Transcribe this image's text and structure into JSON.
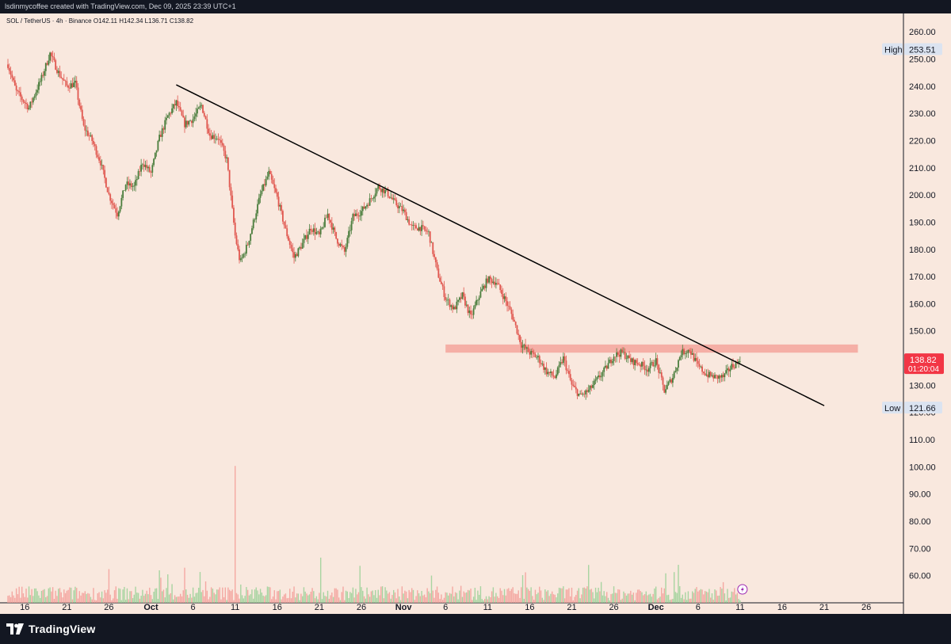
{
  "header": {
    "attribution": "lsdinmycoffee created with TradingView.com, Dec 09, 2025 23:39 UTC+1"
  },
  "legend": {
    "symbol": "SOL / TetherUS · 4h · Binance",
    "open": "O142.11",
    "high": "H142.34",
    "low": "L136.71",
    "close": "C138.82"
  },
  "price_labels": {
    "high_word": "High",
    "high_value": "253.51",
    "low_word": "Low",
    "low_value": "121.66",
    "last_price": "138.82",
    "countdown": "01:20:04"
  },
  "footer": {
    "brand": "TradingView"
  },
  "colors": {
    "background": "#f9e8de",
    "up": "#4a7d3c",
    "down": "#e0574f",
    "trendline": "#000000",
    "resistance_zone": "#f5a49c",
    "last_price_bg": "#f23645",
    "frame": "#131722"
  },
  "chart_data": {
    "type": "candlestick",
    "title": "",
    "symbol": "SOL / TetherUS",
    "interval": "4h",
    "exchange": "Binance",
    "ylim": [
      50,
      265
    ],
    "y_ticks": [
      60,
      70,
      80,
      90,
      100,
      110,
      120,
      130,
      140,
      150,
      160,
      170,
      180,
      190,
      200,
      210,
      220,
      230,
      240,
      250,
      260
    ],
    "x_ticks": [
      "16",
      "21",
      "26",
      "Oct",
      "6",
      "11",
      "16",
      "21",
      "26",
      "Nov",
      "6",
      "11",
      "16",
      "21",
      "26",
      "Dec",
      "6",
      "11",
      "16",
      "21",
      "26"
    ],
    "x_ticks_bold": [
      "Oct",
      "Nov",
      "Dec"
    ],
    "x_range_days": [
      0,
      105
    ],
    "price_path": [
      [
        0,
        248
      ],
      [
        1,
        238
      ],
      [
        2.5,
        232
      ],
      [
        4,
        243
      ],
      [
        5,
        252
      ],
      [
        6,
        245
      ],
      [
        7,
        240
      ],
      [
        8,
        241
      ],
      [
        9,
        225
      ],
      [
        10,
        220
      ],
      [
        11,
        212
      ],
      [
        12,
        200
      ],
      [
        13,
        193
      ],
      [
        14,
        204
      ],
      [
        15,
        203
      ],
      [
        16,
        212
      ],
      [
        17,
        208
      ],
      [
        18,
        221
      ],
      [
        19,
        229
      ],
      [
        20,
        234
      ],
      [
        21,
        226
      ],
      [
        22,
        228
      ],
      [
        23,
        233
      ],
      [
        24,
        222
      ],
      [
        25,
        221
      ],
      [
        26,
        213
      ],
      [
        27,
        185
      ],
      [
        27.6,
        175
      ],
      [
        28.5,
        182
      ],
      [
        30,
        200
      ],
      [
        31,
        208
      ],
      [
        32,
        199
      ],
      [
        33,
        187
      ],
      [
        34,
        177
      ],
      [
        35,
        182
      ],
      [
        36,
        188
      ],
      [
        37,
        185
      ],
      [
        38,
        193
      ],
      [
        39,
        184
      ],
      [
        40,
        179
      ],
      [
        41,
        192
      ],
      [
        42,
        194
      ],
      [
        43,
        198
      ],
      [
        44,
        203
      ],
      [
        45,
        201
      ],
      [
        46,
        197
      ],
      [
        47,
        194
      ],
      [
        48,
        188
      ],
      [
        49,
        188
      ],
      [
        50,
        186
      ],
      [
        51,
        172
      ],
      [
        52,
        162
      ],
      [
        53,
        158
      ],
      [
        54,
        163
      ],
      [
        55,
        155
      ],
      [
        56,
        163
      ],
      [
        57,
        169
      ],
      [
        58,
        168
      ],
      [
        59,
        162
      ],
      [
        60,
        155
      ],
      [
        61,
        145
      ],
      [
        62,
        142
      ],
      [
        63,
        140
      ],
      [
        64,
        135
      ],
      [
        65,
        133
      ],
      [
        66,
        140
      ],
      [
        67,
        130
      ],
      [
        68,
        126
      ],
      [
        69,
        128
      ],
      [
        70,
        132
      ],
      [
        71,
        136
      ],
      [
        72,
        141
      ],
      [
        73,
        142
      ],
      [
        74,
        139
      ],
      [
        75,
        138
      ],
      [
        76,
        136
      ],
      [
        77,
        139
      ],
      [
        78,
        128
      ],
      [
        79,
        133
      ],
      [
        80,
        142
      ],
      [
        81,
        143
      ],
      [
        82,
        137
      ],
      [
        83,
        134
      ],
      [
        84,
        133
      ],
      [
        85,
        133
      ],
      [
        86,
        137
      ],
      [
        87,
        138.82
      ]
    ],
    "candles_per_day": 6,
    "seed": 7,
    "volume_spikes": [
      [
        27,
        48
      ]
    ],
    "volume_scale_ylim": [
      0,
      55
    ],
    "trendline": {
      "from": [
        20,
        240.5
      ],
      "to": [
        97,
        122.5
      ]
    },
    "resistance_zone": {
      "x_from": 52,
      "x_to": 101,
      "y_low": 142,
      "y_high": 145
    },
    "high": 253.51,
    "low": 121.66,
    "last_price": 138.82
  }
}
